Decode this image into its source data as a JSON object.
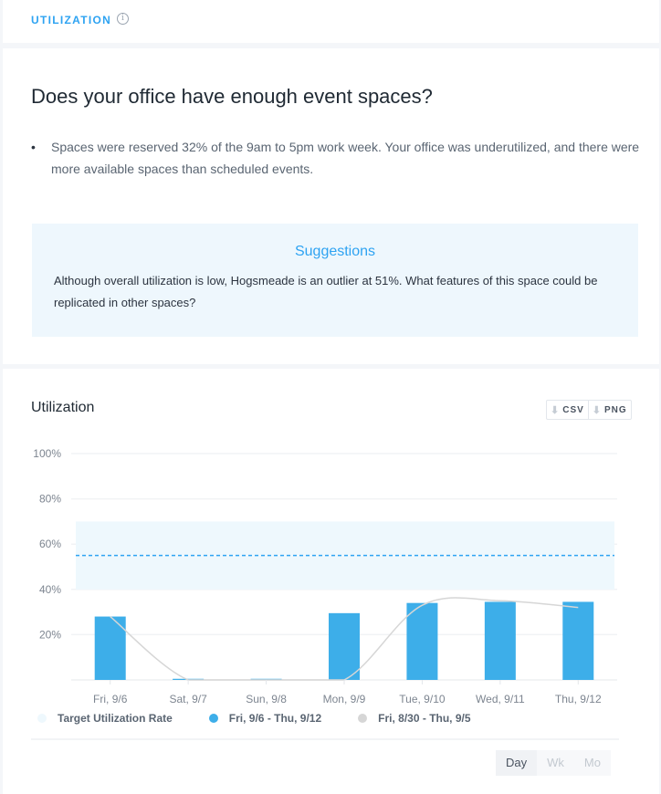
{
  "header": {
    "section_label": "UTILIZATION",
    "info_icon": "info-icon"
  },
  "insight": {
    "question": "Does your office have enough event spaces?",
    "bullets": [
      "Spaces were reserved 32% of the 9am to 5pm work week. Your office was underutilized, and there were more available spaces than scheduled events."
    ],
    "suggestions_title": "Suggestions",
    "suggestions_text": "Although overall utilization is low, Hogsmeade is an outlier at 51%. What features of this space could be replicated in other spaces?"
  },
  "chart_panel": {
    "title": "Utilization",
    "download_csv": "CSV",
    "download_png": "PNG",
    "download_icon": "download-icon",
    "granularity": {
      "options": [
        "Day",
        "Wk",
        "Mo"
      ],
      "selected": "Day"
    }
  },
  "chart_data": {
    "type": "bar",
    "categories": [
      "Fri, 9/6",
      "Sat, 9/7",
      "Sun, 9/8",
      "Mon, 9/9",
      "Tue, 9/10",
      "Wed, 9/11",
      "Thu, 9/12"
    ],
    "ylim": [
      0,
      100
    ],
    "yticks": [
      "20%",
      "40%",
      "60%",
      "80%",
      "100%"
    ],
    "ytick_values": [
      20,
      40,
      60,
      80,
      100
    ],
    "grid": true,
    "legend_placement": "bottom",
    "series": [
      {
        "name": "Fri, 9/6 - Thu, 9/12",
        "type": "bar",
        "color": "#3daee9",
        "values": [
          28,
          0.5,
          0.5,
          29.5,
          34,
          34.5,
          34.5
        ]
      },
      {
        "name": "Fri, 8/30 - Thu, 9/5",
        "type": "line",
        "color": "#d6d6d6",
        "values": [
          28,
          0,
          0,
          0,
          33,
          35,
          32
        ]
      }
    ],
    "target": {
      "name": "Target Utilization Rate",
      "band": [
        40,
        70
      ],
      "line": 55,
      "band_color": "#eef8fd",
      "line_color": "#2ea3f2"
    }
  }
}
